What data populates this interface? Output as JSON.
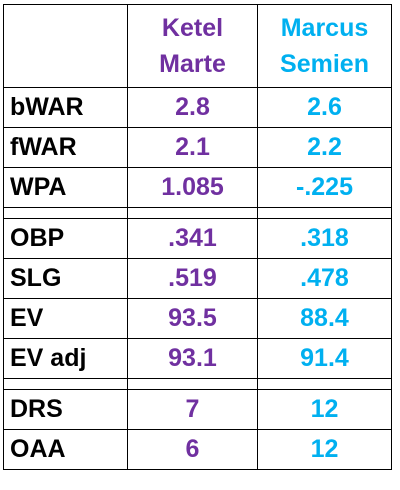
{
  "table": {
    "headers": [
      "Ketel Marte",
      "Marcus Semien"
    ],
    "sections": [
      [
        {
          "label": "bWAR",
          "values": [
            "2.8",
            "2.6"
          ]
        },
        {
          "label": "fWAR",
          "values": [
            "2.1",
            "2.2"
          ]
        },
        {
          "label": "WPA",
          "values": [
            "1.085",
            "-.225"
          ]
        }
      ],
      [
        {
          "label": "OBP",
          "values": [
            ".341",
            ".318"
          ]
        },
        {
          "label": "SLG",
          "values": [
            ".519",
            ".478"
          ]
        },
        {
          "label": "EV",
          "values": [
            "93.5",
            "88.4"
          ]
        },
        {
          "label": "EV adj",
          "values": [
            "93.1",
            "91.4"
          ]
        }
      ],
      [
        {
          "label": "DRS",
          "values": [
            "7",
            "12"
          ]
        },
        {
          "label": "OAA",
          "values": [
            "6",
            "12"
          ]
        }
      ]
    ]
  }
}
